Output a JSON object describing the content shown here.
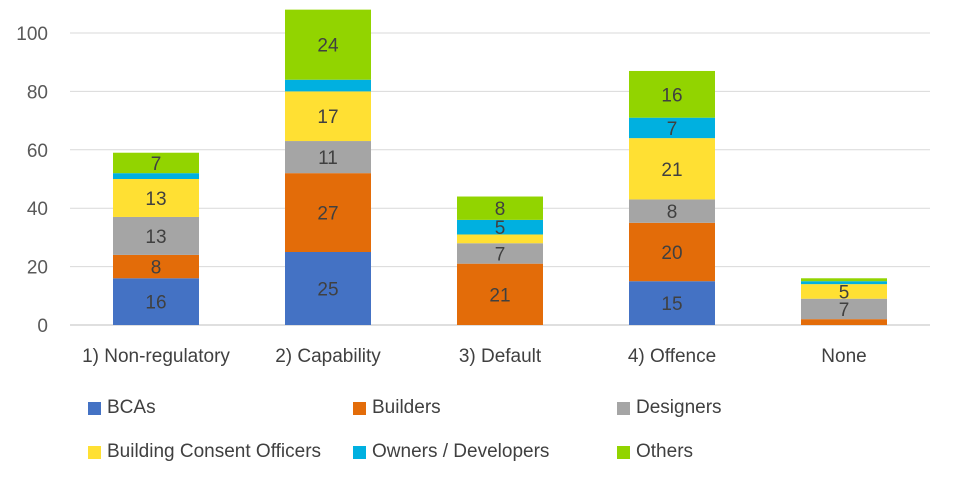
{
  "chart_data": {
    "type": "stacked-bar",
    "title": "",
    "xlabel": "",
    "ylabel": "",
    "ylim": [
      0,
      108
    ],
    "yticks": [
      0,
      20,
      40,
      60,
      80,
      100
    ],
    "grid": true,
    "legend_position": "bottom",
    "categories": [
      "1) Non-regulatory",
      "2) Capability",
      "3) Default",
      "4) Offence",
      "None"
    ],
    "series": [
      {
        "name": "BCAs",
        "color": "#4472C4",
        "values": [
          16,
          25,
          0,
          15,
          0
        ],
        "labels": [
          "16",
          "25",
          "",
          "15",
          ""
        ]
      },
      {
        "name": "Builders",
        "color": "#E36C09",
        "values": [
          8,
          27,
          21,
          20,
          2
        ],
        "labels": [
          "8",
          "27",
          "21",
          "20",
          ""
        ]
      },
      {
        "name": "Designers",
        "color": "#A5A5A5",
        "values": [
          13,
          11,
          7,
          8,
          7
        ],
        "labels": [
          "13",
          "11",
          "7",
          "8",
          "7"
        ]
      },
      {
        "name": "Building Consent Officers",
        "color": "#FFE033",
        "values": [
          13,
          17,
          3,
          21,
          5
        ],
        "labels": [
          "13",
          "17",
          "",
          "21",
          "5"
        ]
      },
      {
        "name": "Owners / Developers",
        "color": "#00B0E0",
        "values": [
          2,
          4,
          5,
          7,
          1
        ],
        "labels": [
          "",
          "",
          "5",
          "7",
          ""
        ]
      },
      {
        "name": "Others",
        "color": "#92D400",
        "values": [
          7,
          24,
          8,
          16,
          1
        ],
        "labels": [
          "7",
          "24",
          "8",
          "16",
          ""
        ]
      }
    ]
  }
}
